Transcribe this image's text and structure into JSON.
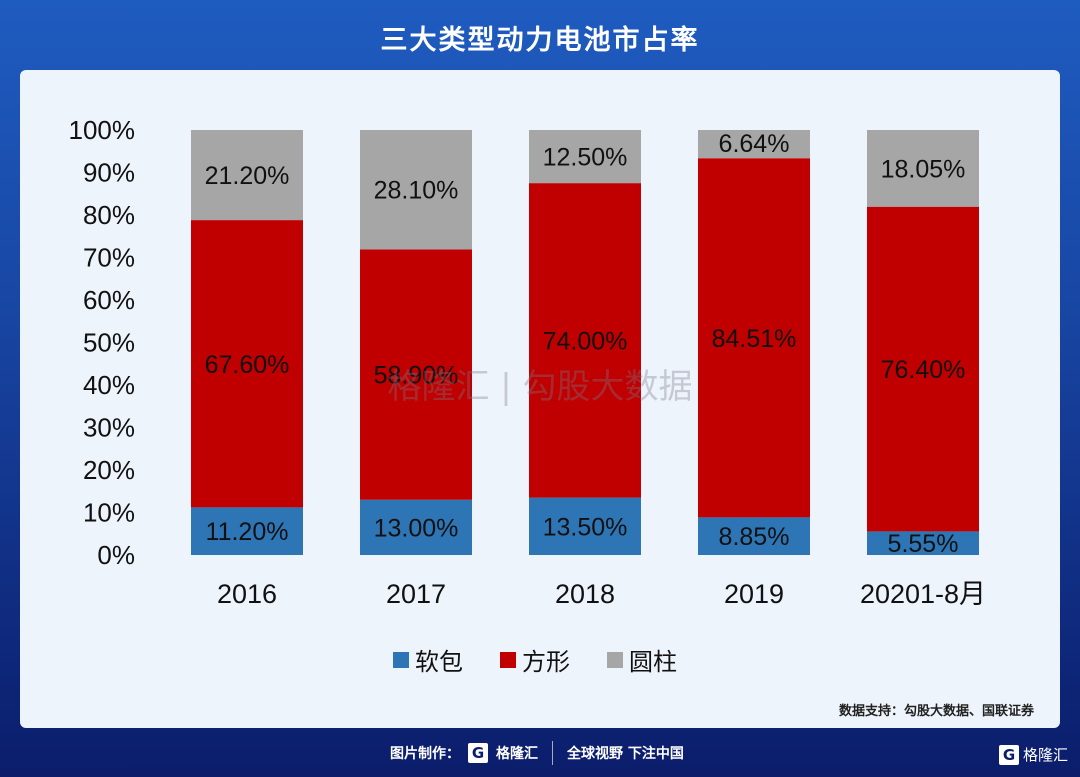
{
  "title": "三大类型动力电池市占率",
  "chart_data": {
    "type": "bar",
    "stacked": true,
    "title": "三大类型动力电池市占率",
    "categories": [
      "2016",
      "2017",
      "2018",
      "2019",
      "20201-8月"
    ],
    "series": [
      {
        "name": "软包",
        "color": "#2e75b6",
        "values": [
          11.2,
          13.0,
          13.5,
          8.85,
          5.55
        ],
        "labels": [
          "11.20%",
          "13.00%",
          "13.50%",
          "8.85%",
          "5.55%"
        ]
      },
      {
        "name": "方形",
        "color": "#c00000",
        "values": [
          67.6,
          58.9,
          74.0,
          84.51,
          76.4
        ],
        "labels": [
          "67.60%",
          "58.90%",
          "74.00%",
          "84.51%",
          "76.40%"
        ]
      },
      {
        "name": "圆柱",
        "color": "#a6a6a6",
        "values": [
          21.2,
          28.1,
          12.5,
          6.64,
          18.05
        ],
        "labels": [
          "21.20%",
          "28.10%",
          "12.50%",
          "6.64%",
          "18.05%"
        ]
      }
    ],
    "ylim": [
      0,
      100
    ],
    "yticks": [
      "0%",
      "10%",
      "20%",
      "30%",
      "40%",
      "50%",
      "60%",
      "70%",
      "80%",
      "90%",
      "100%"
    ],
    "legend": "bottom",
    "grid": false
  },
  "watermark": "格隆汇 | 勾股大数据",
  "source": "数据支持：勾股大数据、国联证券",
  "footer": {
    "made_by": "图片制作：",
    "brand": "格隆汇",
    "slogan": "全球视野 下注中国"
  },
  "corner_brand": "格隆汇"
}
